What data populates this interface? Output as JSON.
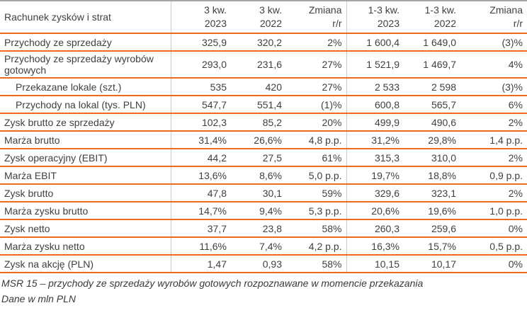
{
  "table": {
    "title": "Rachunek zysków i strat",
    "header_columns": [
      {
        "line1": "3 kw.",
        "line2": "2023"
      },
      {
        "line1": "3 kw.",
        "line2": "2022"
      },
      {
        "line1": "Zmiana",
        "line2": "r/r"
      },
      {
        "line1": "1-3 kw.",
        "line2": "2023"
      },
      {
        "line1": "1-3 kw.",
        "line2": "2022"
      },
      {
        "line1": "Zmiana",
        "line2": "r/r"
      }
    ],
    "rows": [
      {
        "label": "Przychody ze sprzedaży",
        "indent": false,
        "values": [
          "325,9",
          "320,2",
          "2%",
          "1 600,4",
          "1 649,0",
          "(3)%"
        ]
      },
      {
        "label": "Przychody ze sprzedaży wyrobów gotowych",
        "indent": false,
        "values": [
          "293,0",
          "231,6",
          "27%",
          "1 521,9",
          "1 469,7",
          "4%"
        ]
      },
      {
        "label": "Przekazane lokale (szt.)",
        "indent": true,
        "values": [
          "535",
          "420",
          "27%",
          "2 533",
          "2 598",
          "(3)%"
        ]
      },
      {
        "label": "Przychody na lokal (tys. PLN)",
        "indent": true,
        "values": [
          "547,7",
          "551,4",
          "(1)%",
          "600,8",
          "565,7",
          "6%"
        ]
      },
      {
        "label": "Zysk brutto ze sprzedaży",
        "indent": false,
        "values": [
          "102,3",
          "85,2",
          "20%",
          "499,9",
          "490,6",
          "2%"
        ]
      },
      {
        "label": "Marża brutto",
        "indent": false,
        "values": [
          "31,4%",
          "26,6%",
          "4,8 p.p.",
          "31,2%",
          "29,8%",
          "1,4 p.p."
        ]
      },
      {
        "label": "Zysk operacyjny (EBIT)",
        "indent": false,
        "values": [
          "44,2",
          "27,5",
          "61%",
          "315,3",
          "310,0",
          "2%"
        ]
      },
      {
        "label": "Marża EBIT",
        "indent": false,
        "values": [
          "13,6%",
          "8,6%",
          "5,0 p.p.",
          "19,7%",
          "18,8%",
          "0,9 p.p."
        ]
      },
      {
        "label": "Zysk brutto",
        "indent": false,
        "values": [
          "47,8",
          "30,1",
          "59%",
          "329,6",
          "323,1",
          "2%"
        ]
      },
      {
        "label": "Marża zysku brutto",
        "indent": false,
        "values": [
          "14,7%",
          "9,4%",
          "5,3 p.p.",
          "20,6%",
          "19,6%",
          "1,0 p.p."
        ]
      },
      {
        "label": "Zysk netto",
        "indent": false,
        "values": [
          "37,7",
          "23,8",
          "58%",
          "260,3",
          "259,6",
          "0%"
        ]
      },
      {
        "label": "Marża zysku netto",
        "indent": false,
        "values": [
          "11,6%",
          "7,4%",
          "4,2 p.p.",
          "16,3%",
          "15,7%",
          "0,5 p.p."
        ]
      },
      {
        "label": "Zysk na akcję (PLN)",
        "indent": false,
        "values": [
          "1,47",
          "0,93",
          "58%",
          "10,15",
          "10,17",
          "0%"
        ]
      }
    ],
    "footnotes": [
      "MSR 15 – przychody ze sprzedaży wyrobów gotowych rozpoznawane w momencie przekazania",
      "Dane w mln PLN"
    ],
    "colors": {
      "accent_orange": "#ED6A1E",
      "grid_gray": "#C9C9C9",
      "top_border_gray": "#A6A6A6",
      "text": "#404040"
    }
  }
}
